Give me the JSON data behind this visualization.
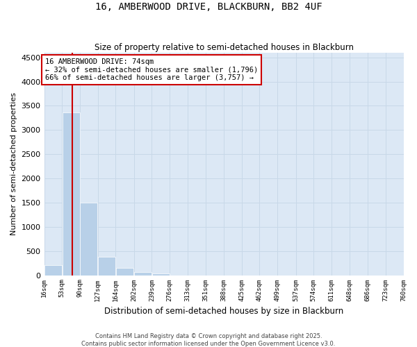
{
  "title1": "16, AMBERWOOD DRIVE, BLACKBURN, BB2 4UF",
  "title2": "Size of property relative to semi-detached houses in Blackburn",
  "xlabel": "Distribution of semi-detached houses by size in Blackburn",
  "ylabel": "Number of semi-detached properties",
  "annotation_title": "16 AMBERWOOD DRIVE: 74sqm",
  "annotation_line2": "← 32% of semi-detached houses are smaller (1,796)",
  "annotation_line3": "66% of semi-detached houses are larger (3,757) →",
  "property_size_sqm": 74,
  "bin_edges": [
    16,
    53,
    90,
    127,
    164,
    202,
    239,
    276,
    313,
    351,
    388,
    425,
    462,
    499,
    537,
    574,
    611,
    648,
    686,
    723,
    760
  ],
  "bin_labels": [
    "16sqm",
    "53sqm",
    "90sqm",
    "127sqm",
    "164sqm",
    "202sqm",
    "239sqm",
    "276sqm",
    "313sqm",
    "351sqm",
    "388sqm",
    "425sqm",
    "462sqm",
    "499sqm",
    "537sqm",
    "574sqm",
    "611sqm",
    "648sqm",
    "686sqm",
    "723sqm",
    "760sqm"
  ],
  "bar_heights": [
    215,
    3360,
    1500,
    380,
    155,
    60,
    30,
    0,
    0,
    0,
    0,
    0,
    0,
    0,
    0,
    0,
    0,
    0,
    0,
    0
  ],
  "bar_color": "#b8d0e8",
  "property_line_color": "#cc0000",
  "annotation_box_edgecolor": "#cc0000",
  "grid_color": "#c8d8e8",
  "bg_color": "#dce8f5",
  "ylim": [
    0,
    4600
  ],
  "yticks": [
    0,
    500,
    1000,
    1500,
    2000,
    2500,
    3000,
    3500,
    4000,
    4500
  ],
  "footer1": "Contains HM Land Registry data © Crown copyright and database right 2025.",
  "footer2": "Contains public sector information licensed under the Open Government Licence v3.0."
}
